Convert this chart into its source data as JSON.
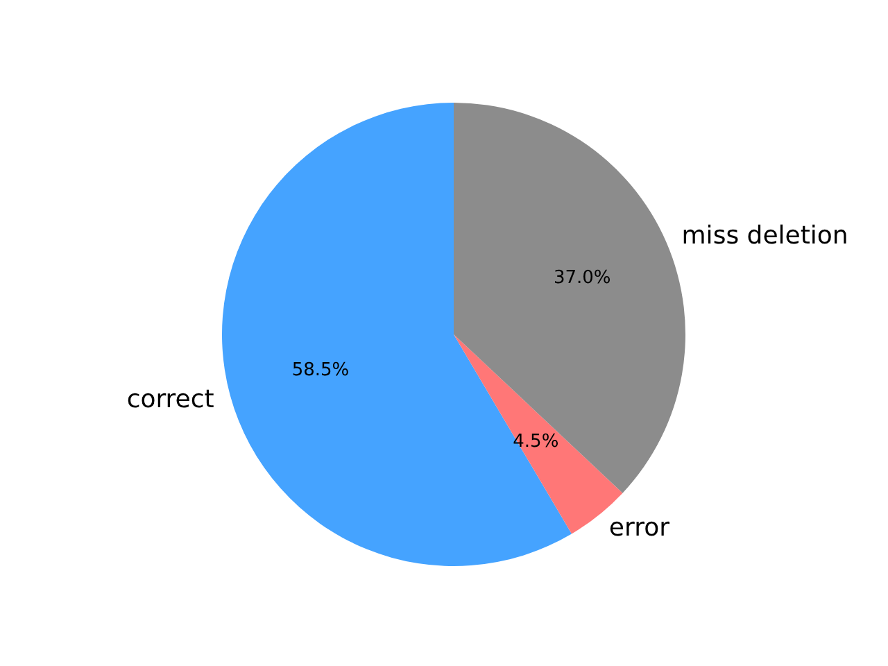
{
  "chart_data": {
    "type": "pie",
    "categories": [
      "correct",
      "error",
      "miss deletion"
    ],
    "values": [
      58.5,
      4.5,
      37.0
    ],
    "colors": [
      "#45a3ff",
      "#ff7777",
      "#8c8c8c"
    ],
    "value_labels": [
      "58.5%",
      "4.5%",
      "37.0%"
    ]
  }
}
